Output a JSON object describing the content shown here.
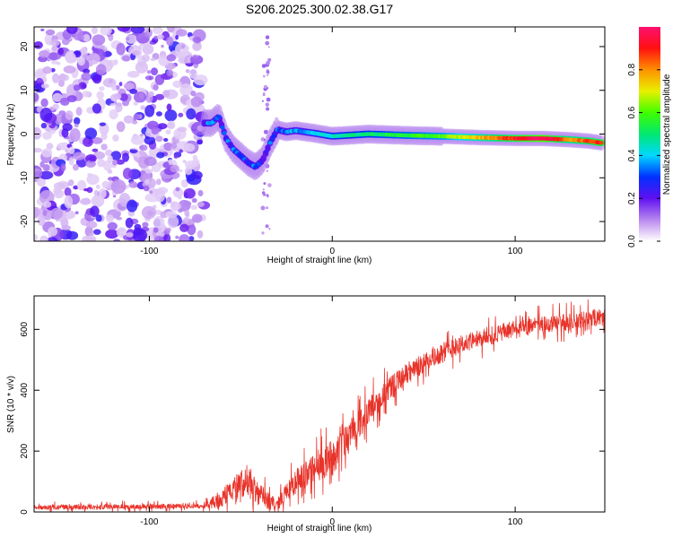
{
  "title": "S206.2025.300.02.38.G17",
  "chart_data": [
    {
      "type": "heatmap",
      "name": "spectrogram",
      "title": "S206.2025.300.02.38.G17",
      "xlabel": "Height of straight line (km)",
      "ylabel": "Frequency (Hz)",
      "xlim": [
        -163,
        149
      ],
      "ylim": [
        -24.5,
        24.5
      ],
      "xticks": [
        -100,
        0,
        100
      ],
      "yticks": [
        -20,
        -10,
        0,
        10,
        20
      ],
      "noise_region_x": [
        -163,
        -70
      ],
      "ridge": {
        "description_points": [
          {
            "x": -66,
            "y": 2.5,
            "amp": 0.35
          },
          {
            "x": -62,
            "y": 4,
            "amp": 0.25
          },
          {
            "x": -58,
            "y": -1,
            "amp": 0.3
          },
          {
            "x": -54,
            "y": -3.5,
            "amp": 0.3
          },
          {
            "x": -50,
            "y": -5,
            "amp": 0.3
          },
          {
            "x": -46,
            "y": -6.5,
            "amp": 0.3
          },
          {
            "x": -42,
            "y": -7.5,
            "amp": 0.3
          },
          {
            "x": -38,
            "y": -6,
            "amp": 0.25
          },
          {
            "x": -34,
            "y": -2,
            "amp": 0.3
          },
          {
            "x": -30,
            "y": 1,
            "amp": 0.3
          },
          {
            "x": -25,
            "y": 0.5,
            "amp": 0.35
          },
          {
            "x": -20,
            "y": 0.8,
            "amp": 0.35
          },
          {
            "x": -10,
            "y": 0.2,
            "amp": 0.4
          },
          {
            "x": 0,
            "y": -0.5,
            "amp": 0.45
          },
          {
            "x": 20,
            "y": 0,
            "amp": 0.5
          },
          {
            "x": 40,
            "y": -0.3,
            "amp": 0.55
          },
          {
            "x": 60,
            "y": -0.5,
            "amp": 0.6
          },
          {
            "x": 80,
            "y": -0.8,
            "amp": 0.75
          },
          {
            "x": 100,
            "y": -1.0,
            "amp": 0.9
          },
          {
            "x": 115,
            "y": -1.0,
            "amp": 1.0
          },
          {
            "x": 130,
            "y": -1.3,
            "amp": 0.8
          },
          {
            "x": 140,
            "y": -1.6,
            "amp": 0.85
          },
          {
            "x": 147,
            "y": -2.0,
            "amp": 0.9
          }
        ]
      },
      "colorbar": {
        "label": "Normalized spectral amplitude",
        "range": [
          0.0,
          1.0
        ],
        "ticks": [
          "0.0",
          "0.2",
          "0.4",
          "0.6",
          "0.8"
        ],
        "tick_values": [
          0.0,
          0.2,
          0.4,
          0.6,
          0.8
        ]
      }
    },
    {
      "type": "line",
      "name": "snr",
      "xlabel": "Height of straight line (km)",
      "ylabel": "SNR (10 * v/v)",
      "xlim": [
        -163,
        149
      ],
      "ylim": [
        0,
        710
      ],
      "xticks": [
        -100,
        0,
        100
      ],
      "yticks": [
        0,
        200,
        400,
        600
      ],
      "series_color": "#e8332a",
      "trend_points": [
        {
          "x": -163,
          "y": 15
        },
        {
          "x": -100,
          "y": 18
        },
        {
          "x": -70,
          "y": 20
        },
        {
          "x": -62,
          "y": 40
        },
        {
          "x": -56,
          "y": 70
        },
        {
          "x": -50,
          "y": 90
        },
        {
          "x": -45,
          "y": 80
        },
        {
          "x": -40,
          "y": 60
        },
        {
          "x": -35,
          "y": 35
        },
        {
          "x": -30,
          "y": 25
        },
        {
          "x": -26,
          "y": 60
        },
        {
          "x": -20,
          "y": 100
        },
        {
          "x": -10,
          "y": 140
        },
        {
          "x": 0,
          "y": 180
        },
        {
          "x": 10,
          "y": 250
        },
        {
          "x": 20,
          "y": 330
        },
        {
          "x": 30,
          "y": 400
        },
        {
          "x": 40,
          "y": 450
        },
        {
          "x": 55,
          "y": 510
        },
        {
          "x": 70,
          "y": 550
        },
        {
          "x": 90,
          "y": 585
        },
        {
          "x": 110,
          "y": 610
        },
        {
          "x": 130,
          "y": 625
        },
        {
          "x": 149,
          "y": 640
        }
      ],
      "noise_scale": [
        {
          "x": -163,
          "amp": 10
        },
        {
          "x": -70,
          "amp": 10
        },
        {
          "x": -60,
          "amp": 40
        },
        {
          "x": -50,
          "amp": 55
        },
        {
          "x": -40,
          "amp": 45
        },
        {
          "x": -30,
          "amp": 25
        },
        {
          "x": -20,
          "amp": 50
        },
        {
          "x": 0,
          "amp": 70
        },
        {
          "x": 30,
          "amp": 45
        },
        {
          "x": 60,
          "amp": 40
        },
        {
          "x": 100,
          "amp": 35
        },
        {
          "x": 149,
          "amp": 35
        }
      ]
    }
  ]
}
